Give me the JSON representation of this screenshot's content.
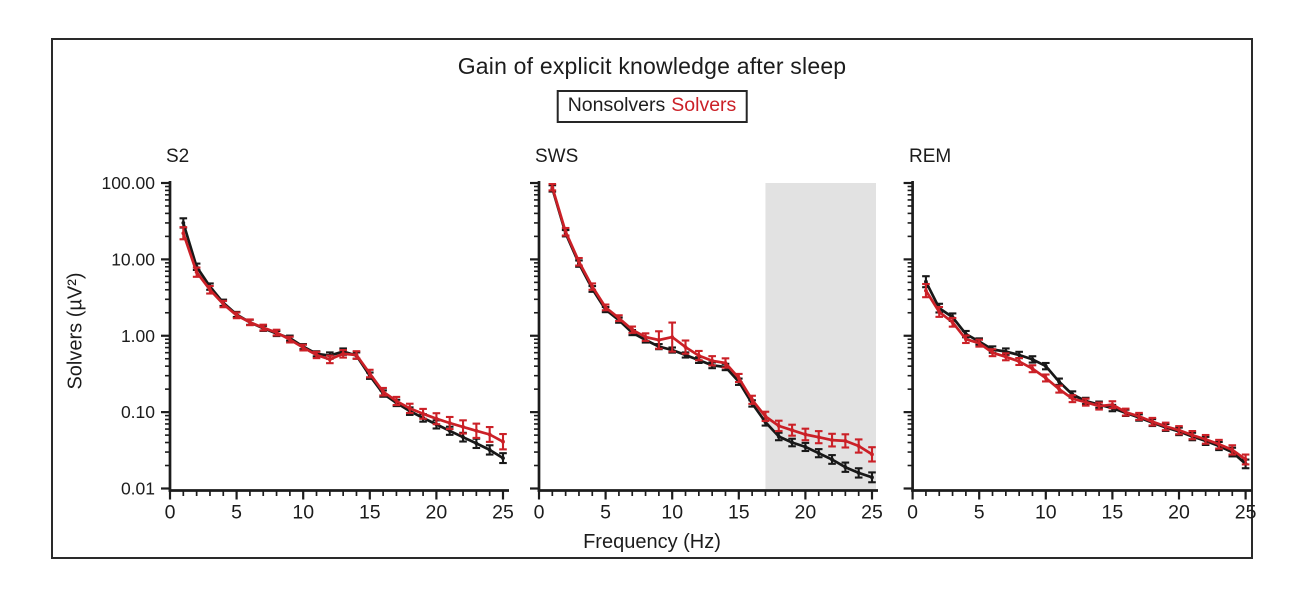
{
  "figure": {
    "title": "Gain of explicit knowledge after sleep",
    "legend": {
      "nonsolvers": "Nonsolvers",
      "solvers": "Solvers"
    },
    "xlabel": "Frequency (Hz)",
    "ylabel": "Solvers (µV²)"
  },
  "colors": {
    "nonsolvers": "#181818",
    "solvers": "#cb2027",
    "highlight_band": "#e2e2e2",
    "frame_border": "#2a2a2a"
  },
  "chart_data": [
    {
      "type": "line",
      "title": "S2",
      "x_axis": "Frequency (Hz)",
      "xlim": [
        0,
        25
      ],
      "xticks": [
        0,
        5,
        10,
        15,
        20,
        25
      ],
      "y_scale": "log",
      "ylim": [
        0.01,
        100
      ],
      "ytick_values": [
        100,
        10,
        1,
        0.1,
        0.01
      ],
      "ytick_labels": [
        "100.00",
        "10.00",
        "1.00",
        "0.10",
        "0.01"
      ],
      "x": [
        1,
        2,
        3,
        4,
        5,
        6,
        7,
        8,
        9,
        10,
        11,
        12,
        13,
        14,
        15,
        16,
        17,
        18,
        19,
        20,
        21,
        22,
        23,
        24,
        25
      ],
      "series": [
        {
          "name": "Nonsolvers",
          "color": "#181818",
          "values": [
            30,
            8.0,
            4.4,
            2.7,
            1.9,
            1.5,
            1.25,
            1.07,
            0.93,
            0.72,
            0.58,
            0.55,
            0.62,
            0.55,
            0.3,
            0.175,
            0.132,
            0.103,
            0.084,
            0.069,
            0.057,
            0.047,
            0.039,
            0.032,
            0.025
          ],
          "err": [
            0.15,
            0.1,
            0.1,
            0.1,
            0.08,
            0.08,
            0.08,
            0.08,
            0.08,
            0.08,
            0.08,
            0.1,
            0.1,
            0.1,
            0.1,
            0.1,
            0.1,
            0.12,
            0.12,
            0.13,
            0.13,
            0.14,
            0.15,
            0.15,
            0.16
          ]
        },
        {
          "name": "Solvers",
          "color": "#cb2027",
          "values": [
            22,
            6.8,
            4.0,
            2.6,
            1.85,
            1.5,
            1.28,
            1.1,
            0.89,
            0.7,
            0.56,
            0.49,
            0.58,
            0.56,
            0.32,
            0.185,
            0.14,
            0.112,
            0.095,
            0.082,
            0.072,
            0.064,
            0.057,
            0.051,
            0.041
          ],
          "err": [
            0.2,
            0.15,
            0.12,
            0.1,
            0.09,
            0.09,
            0.09,
            0.09,
            0.09,
            0.09,
            0.1,
            0.12,
            0.12,
            0.12,
            0.12,
            0.12,
            0.13,
            0.15,
            0.16,
            0.18,
            0.2,
            0.22,
            0.24,
            0.25,
            0.26
          ]
        }
      ]
    },
    {
      "type": "line",
      "title": "SWS",
      "x_axis": "Frequency (Hz)",
      "xlim": [
        0,
        25
      ],
      "xticks": [
        0,
        5,
        10,
        15,
        20,
        25
      ],
      "y_scale": "log",
      "ylim": [
        0.01,
        100
      ],
      "ytick_values": [
        100,
        10,
        1,
        0.1,
        0.01
      ],
      "ytick_labels": [],
      "shaded_region": {
        "x0": 17,
        "x1": 25,
        "color": "#e2e2e2"
      },
      "x": [
        1,
        2,
        3,
        4,
        5,
        6,
        7,
        8,
        9,
        10,
        11,
        12,
        13,
        14,
        15,
        16,
        17,
        18,
        19,
        20,
        21,
        22,
        23,
        24,
        25
      ],
      "series": [
        {
          "name": "Nonsolvers",
          "color": "#181818",
          "values": [
            85,
            22,
            8.8,
            4.1,
            2.2,
            1.6,
            1.1,
            0.88,
            0.72,
            0.65,
            0.56,
            0.48,
            0.41,
            0.39,
            0.25,
            0.13,
            0.074,
            0.048,
            0.04,
            0.035,
            0.029,
            0.024,
            0.019,
            0.016,
            0.014
          ],
          "err": [
            0.1,
            0.1,
            0.1,
            0.09,
            0.08,
            0.08,
            0.08,
            0.08,
            0.08,
            0.08,
            0.08,
            0.09,
            0.09,
            0.1,
            0.1,
            0.1,
            0.11,
            0.12,
            0.12,
            0.13,
            0.13,
            0.14,
            0.15,
            0.15,
            0.16
          ]
        },
        {
          "name": "Solvers",
          "color": "#cb2027",
          "values": [
            88,
            23,
            9.3,
            4.4,
            2.35,
            1.7,
            1.2,
            0.96,
            0.88,
            0.96,
            0.71,
            0.55,
            0.47,
            0.44,
            0.28,
            0.145,
            0.088,
            0.066,
            0.058,
            0.051,
            0.047,
            0.043,
            0.042,
            0.036,
            0.028
          ],
          "err": [
            0.1,
            0.12,
            0.12,
            0.1,
            0.09,
            0.09,
            0.1,
            0.12,
            0.3,
            0.55,
            0.22,
            0.15,
            0.15,
            0.15,
            0.13,
            0.13,
            0.15,
            0.17,
            0.18,
            0.19,
            0.2,
            0.21,
            0.22,
            0.22,
            0.24
          ]
        }
      ]
    },
    {
      "type": "line",
      "title": "REM",
      "x_axis": "Frequency (Hz)",
      "xlim": [
        0,
        25
      ],
      "xticks": [
        0,
        5,
        10,
        15,
        20,
        25
      ],
      "y_scale": "log",
      "ylim": [
        0.01,
        100
      ],
      "ytick_values": [
        100,
        10,
        1,
        0.1,
        0.01
      ],
      "ytick_labels": [],
      "x": [
        1,
        2,
        3,
        4,
        5,
        6,
        7,
        8,
        9,
        10,
        11,
        12,
        13,
        14,
        15,
        16,
        17,
        18,
        19,
        20,
        21,
        22,
        23,
        24,
        25
      ],
      "series": [
        {
          "name": "Nonsolvers",
          "color": "#181818",
          "values": [
            5.1,
            2.3,
            1.75,
            1.05,
            0.84,
            0.66,
            0.62,
            0.56,
            0.49,
            0.4,
            0.25,
            0.17,
            0.14,
            0.125,
            0.113,
            0.098,
            0.085,
            0.073,
            0.063,
            0.056,
            0.048,
            0.042,
            0.036,
            0.03,
            0.021
          ],
          "err": [
            0.18,
            0.14,
            0.12,
            0.1,
            0.1,
            0.1,
            0.1,
            0.1,
            0.1,
            0.1,
            0.1,
            0.1,
            0.1,
            0.1,
            0.1,
            0.1,
            0.1,
            0.11,
            0.11,
            0.12,
            0.12,
            0.13,
            0.13,
            0.14,
            0.14
          ]
        },
        {
          "name": "Solvers",
          "color": "#cb2027",
          "values": [
            3.9,
            2.05,
            1.5,
            0.9,
            0.8,
            0.6,
            0.53,
            0.46,
            0.37,
            0.28,
            0.2,
            0.15,
            0.135,
            0.12,
            0.125,
            0.1,
            0.088,
            0.075,
            0.065,
            0.058,
            0.05,
            0.044,
            0.038,
            0.032,
            0.024
          ],
          "err": [
            0.22,
            0.16,
            0.14,
            0.12,
            0.11,
            0.11,
            0.11,
            0.11,
            0.11,
            0.11,
            0.11,
            0.11,
            0.11,
            0.11,
            0.11,
            0.11,
            0.11,
            0.12,
            0.12,
            0.13,
            0.13,
            0.14,
            0.14,
            0.15,
            0.16
          ]
        }
      ]
    }
  ]
}
